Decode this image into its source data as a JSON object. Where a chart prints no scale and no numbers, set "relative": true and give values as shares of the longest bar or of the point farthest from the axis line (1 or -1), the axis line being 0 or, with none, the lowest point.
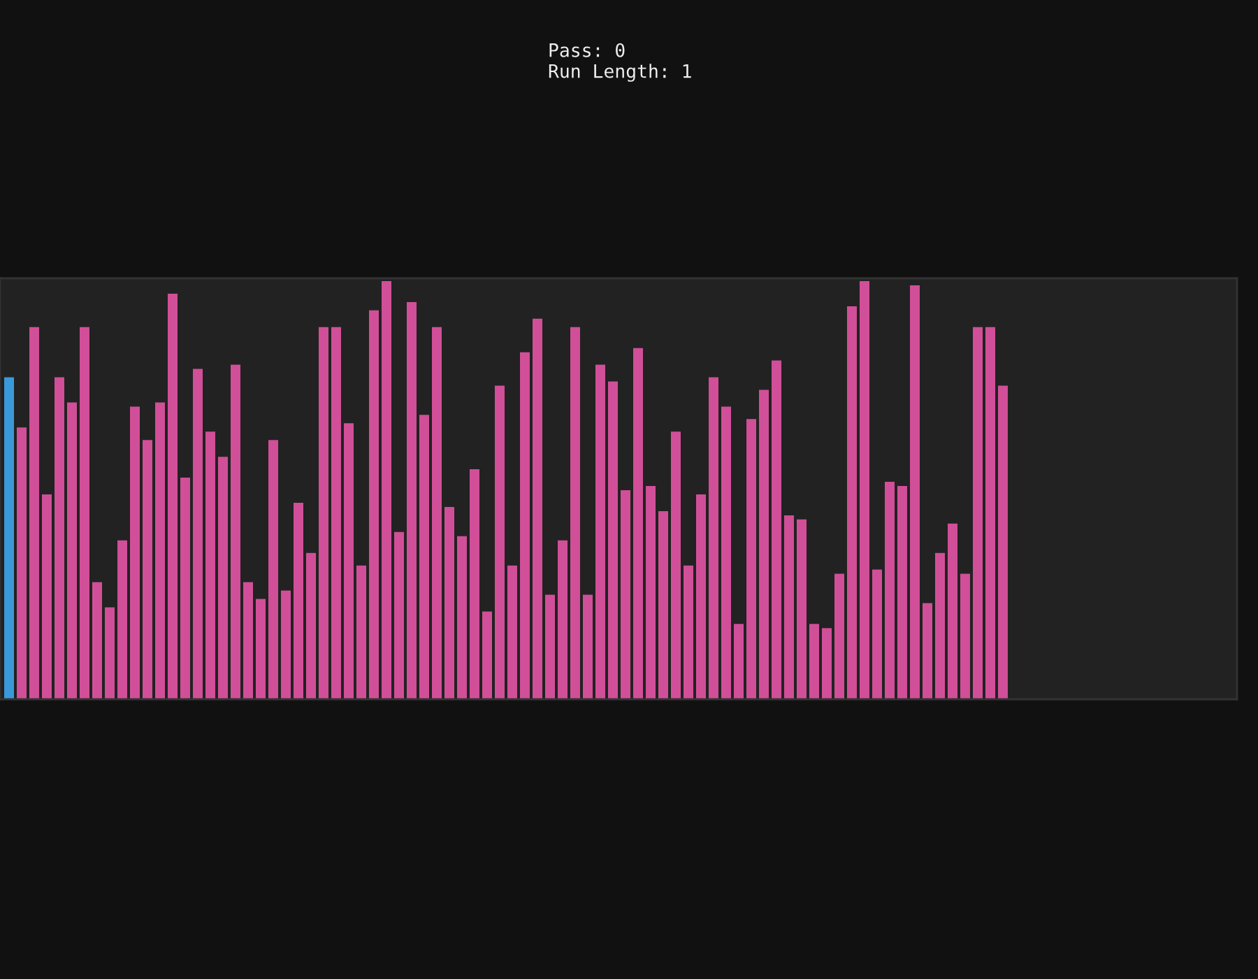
{
  "chart_data": {
    "type": "bar",
    "relative": true,
    "annotations": [
      "Pass: 0",
      "Run Length: 1"
    ],
    "categories": [
      null,
      null,
      null,
      null,
      null,
      null,
      null,
      null,
      null,
      null,
      null,
      null,
      null,
      null,
      null,
      null,
      null,
      null,
      null,
      null,
      null,
      null,
      null,
      null,
      null,
      null,
      null,
      null,
      null,
      null,
      null,
      null,
      null,
      null,
      null,
      null,
      null,
      null,
      null,
      null,
      null,
      null,
      null,
      null,
      null,
      null,
      null,
      null,
      null,
      null,
      null,
      null,
      null,
      null,
      null,
      null,
      null,
      null,
      null,
      null,
      null,
      null,
      null,
      null,
      null,
      null,
      null,
      null,
      null,
      null,
      null,
      null,
      null,
      null,
      null,
      null,
      null,
      null,
      null,
      null
    ],
    "values": [
      0.77,
      0.65,
      0.89,
      0.49,
      0.77,
      0.71,
      0.89,
      0.28,
      0.22,
      0.38,
      0.7,
      0.62,
      0.71,
      0.97,
      0.53,
      0.79,
      0.64,
      0.58,
      0.8,
      0.28,
      0.24,
      0.62,
      0.26,
      0.47,
      0.35,
      0.89,
      0.89,
      0.66,
      0.32,
      0.93,
      1.0,
      0.4,
      0.95,
      0.68,
      0.89,
      0.46,
      0.39,
      0.55,
      0.21,
      0.75,
      0.32,
      0.83,
      0.91,
      0.25,
      0.38,
      0.89,
      0.25,
      0.8,
      0.76,
      0.5,
      0.84,
      0.51,
      0.45,
      0.64,
      0.32,
      0.49,
      0.77,
      0.7,
      0.18,
      0.67,
      0.74,
      0.81,
      0.44,
      0.43,
      0.18,
      0.17,
      0.3,
      0.94,
      1.0,
      0.31,
      0.52,
      0.51,
      0.99,
      0.23,
      0.35,
      0.42,
      0.3,
      0.89,
      0.89,
      0.75
    ],
    "colors": [
      "#3a9ad9",
      "#d14f98",
      "#d14f98",
      "#d14f98",
      "#d14f98",
      "#d14f98",
      "#d14f98",
      "#d14f98",
      "#d14f98",
      "#d14f98",
      "#d14f98",
      "#d14f98",
      "#d14f98",
      "#d14f98",
      "#d14f98",
      "#d14f98",
      "#d14f98",
      "#d14f98",
      "#d14f98",
      "#d14f98",
      "#d14f98",
      "#d14f98",
      "#d14f98",
      "#d14f98",
      "#d14f98",
      "#d14f98",
      "#d14f98",
      "#d14f98",
      "#d14f98",
      "#d14f98",
      "#d14f98",
      "#d14f98",
      "#d14f98",
      "#d14f98",
      "#d14f98",
      "#d14f98",
      "#d14f98",
      "#d14f98",
      "#d14f98",
      "#d14f98",
      "#d14f98",
      "#d14f98",
      "#d14f98",
      "#d14f98",
      "#d14f98",
      "#d14f98",
      "#d14f98",
      "#d14f98",
      "#d14f98",
      "#d14f98",
      "#d14f98",
      "#d14f98",
      "#d14f98",
      "#d14f98",
      "#d14f98",
      "#d14f98",
      "#d14f98",
      "#d14f98",
      "#d14f98",
      "#d14f98",
      "#d14f98",
      "#d14f98",
      "#d14f98",
      "#d14f98",
      "#d14f98",
      "#d14f98",
      "#d14f98",
      "#d14f98",
      "#d14f98",
      "#d14f98",
      "#d14f98",
      "#d14f98",
      "#d14f98",
      "#d14f98",
      "#d14f98",
      "#d14f98",
      "#d14f98",
      "#d14f98",
      "#d14f98",
      "#d14f98"
    ]
  }
}
